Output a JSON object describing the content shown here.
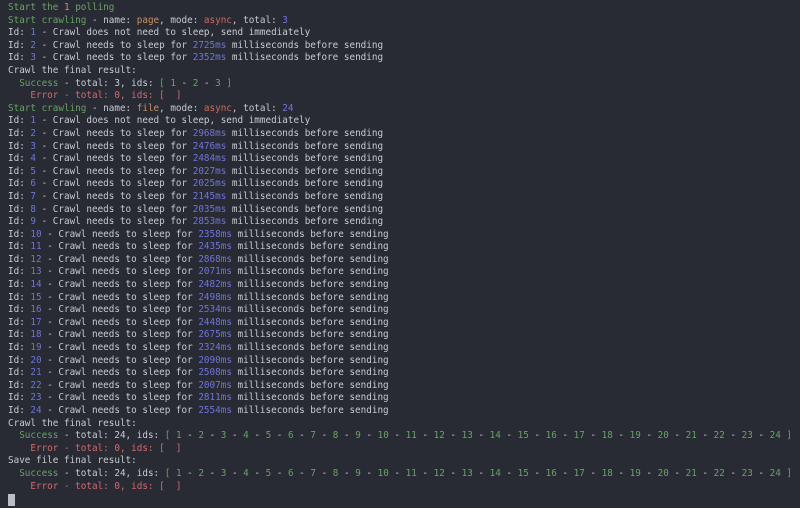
{
  "palette": {
    "bg": "#282b34",
    "default": "#c7cad1",
    "green": "#69a164",
    "orange": "#cb9162",
    "salmon": "#c96b5c",
    "red": "#d4686c",
    "blue": "#6f74d8",
    "cursor": "#b8bdc6"
  },
  "terminal": {
    "lines": [
      [
        [
          "Start the ",
          "green"
        ],
        [
          "1",
          "orange"
        ],
        [
          " polling",
          "green"
        ]
      ],
      [
        [
          "Start crawling",
          "green"
        ],
        [
          " - name: ",
          "default"
        ],
        [
          "page",
          "orange"
        ],
        [
          ", mode: ",
          "default"
        ],
        [
          "async",
          "salmon"
        ],
        [
          ", total: ",
          "default"
        ],
        [
          "3",
          "blue"
        ]
      ],
      [
        [
          "Id: ",
          "default"
        ],
        [
          "1",
          "blue"
        ],
        [
          " - Crawl does not need to sleep, send immediately",
          "default"
        ]
      ],
      [
        [
          "Id: ",
          "default"
        ],
        [
          "2",
          "blue"
        ],
        [
          " - Crawl needs to sleep for ",
          "default"
        ],
        [
          "2725ms",
          "blue"
        ],
        [
          " milliseconds before sending",
          "default"
        ]
      ],
      [
        [
          "Id: ",
          "default"
        ],
        [
          "3",
          "blue"
        ],
        [
          " - Crawl needs to sleep for ",
          "default"
        ],
        [
          "2352ms",
          "blue"
        ],
        [
          " milliseconds before sending",
          "default"
        ]
      ],
      [
        [
          "Crawl the final result:",
          "default"
        ]
      ],
      [
        [
          "  ",
          "default"
        ],
        [
          "Success",
          "green"
        ],
        [
          " - total: 3, ids: ",
          "default"
        ],
        [
          "[ 1",
          "green"
        ],
        [
          " - ",
          "default"
        ],
        [
          "2",
          "green"
        ],
        [
          " - ",
          "default"
        ],
        [
          "3",
          "green"
        ],
        [
          " ]",
          "green"
        ]
      ],
      [
        [
          "    ",
          "default"
        ],
        [
          "Error - total: 0, ids: [  ]",
          "red"
        ]
      ],
      [
        [
          "Start crawling",
          "green"
        ],
        [
          " - name: ",
          "default"
        ],
        [
          "file",
          "orange"
        ],
        [
          ", mode: ",
          "default"
        ],
        [
          "async",
          "salmon"
        ],
        [
          ", total: ",
          "default"
        ],
        [
          "24",
          "blue"
        ]
      ],
      [
        [
          "Id: ",
          "default"
        ],
        [
          "1",
          "blue"
        ],
        [
          " - Crawl does not need to sleep, send immediately",
          "default"
        ]
      ],
      [
        [
          "Id: ",
          "default"
        ],
        [
          "2",
          "blue"
        ],
        [
          " - Crawl needs to sleep for ",
          "default"
        ],
        [
          "2968ms",
          "blue"
        ],
        [
          " milliseconds before sending",
          "default"
        ]
      ],
      [
        [
          "Id: ",
          "default"
        ],
        [
          "3",
          "blue"
        ],
        [
          " - Crawl needs to sleep for ",
          "default"
        ],
        [
          "2476ms",
          "blue"
        ],
        [
          " milliseconds before sending",
          "default"
        ]
      ],
      [
        [
          "Id: ",
          "default"
        ],
        [
          "4",
          "blue"
        ],
        [
          " - Crawl needs to sleep for ",
          "default"
        ],
        [
          "2484ms",
          "blue"
        ],
        [
          " milliseconds before sending",
          "default"
        ]
      ],
      [
        [
          "Id: ",
          "default"
        ],
        [
          "5",
          "blue"
        ],
        [
          " - Crawl needs to sleep for ",
          "default"
        ],
        [
          "2027ms",
          "blue"
        ],
        [
          " milliseconds before sending",
          "default"
        ]
      ],
      [
        [
          "Id: ",
          "default"
        ],
        [
          "6",
          "blue"
        ],
        [
          " - Crawl needs to sleep for ",
          "default"
        ],
        [
          "2025ms",
          "blue"
        ],
        [
          " milliseconds before sending",
          "default"
        ]
      ],
      [
        [
          "Id: ",
          "default"
        ],
        [
          "7",
          "blue"
        ],
        [
          " - Crawl needs to sleep for ",
          "default"
        ],
        [
          "2145ms",
          "blue"
        ],
        [
          " milliseconds before sending",
          "default"
        ]
      ],
      [
        [
          "Id: ",
          "default"
        ],
        [
          "8",
          "blue"
        ],
        [
          " - Crawl needs to sleep for ",
          "default"
        ],
        [
          "2035ms",
          "blue"
        ],
        [
          " milliseconds before sending",
          "default"
        ]
      ],
      [
        [
          "Id: ",
          "default"
        ],
        [
          "9",
          "blue"
        ],
        [
          " - Crawl needs to sleep for ",
          "default"
        ],
        [
          "2853ms",
          "blue"
        ],
        [
          " milliseconds before sending",
          "default"
        ]
      ],
      [
        [
          "Id: ",
          "default"
        ],
        [
          "10",
          "blue"
        ],
        [
          " - Crawl needs to sleep for ",
          "default"
        ],
        [
          "2358ms",
          "blue"
        ],
        [
          " milliseconds before sending",
          "default"
        ]
      ],
      [
        [
          "Id: ",
          "default"
        ],
        [
          "11",
          "blue"
        ],
        [
          " - Crawl needs to sleep for ",
          "default"
        ],
        [
          "2435ms",
          "blue"
        ],
        [
          " milliseconds before sending",
          "default"
        ]
      ],
      [
        [
          "Id: ",
          "default"
        ],
        [
          "12",
          "blue"
        ],
        [
          " - Crawl needs to sleep for ",
          "default"
        ],
        [
          "2868ms",
          "blue"
        ],
        [
          " milliseconds before sending",
          "default"
        ]
      ],
      [
        [
          "Id: ",
          "default"
        ],
        [
          "13",
          "blue"
        ],
        [
          " - Crawl needs to sleep for ",
          "default"
        ],
        [
          "2071ms",
          "blue"
        ],
        [
          " milliseconds before sending",
          "default"
        ]
      ],
      [
        [
          "Id: ",
          "default"
        ],
        [
          "14",
          "blue"
        ],
        [
          " - Crawl needs to sleep for ",
          "default"
        ],
        [
          "2482ms",
          "blue"
        ],
        [
          " milliseconds before sending",
          "default"
        ]
      ],
      [
        [
          "Id: ",
          "default"
        ],
        [
          "15",
          "blue"
        ],
        [
          " - Crawl needs to sleep for ",
          "default"
        ],
        [
          "2498ms",
          "blue"
        ],
        [
          " milliseconds before sending",
          "default"
        ]
      ],
      [
        [
          "Id: ",
          "default"
        ],
        [
          "16",
          "blue"
        ],
        [
          " - Crawl needs to sleep for ",
          "default"
        ],
        [
          "2534ms",
          "blue"
        ],
        [
          " milliseconds before sending",
          "default"
        ]
      ],
      [
        [
          "Id: ",
          "default"
        ],
        [
          "17",
          "blue"
        ],
        [
          " - Crawl needs to sleep for ",
          "default"
        ],
        [
          "2448ms",
          "blue"
        ],
        [
          " milliseconds before sending",
          "default"
        ]
      ],
      [
        [
          "Id: ",
          "default"
        ],
        [
          "18",
          "blue"
        ],
        [
          " - Crawl needs to sleep for ",
          "default"
        ],
        [
          "2675ms",
          "blue"
        ],
        [
          " milliseconds before sending",
          "default"
        ]
      ],
      [
        [
          "Id: ",
          "default"
        ],
        [
          "19",
          "blue"
        ],
        [
          " - Crawl needs to sleep for ",
          "default"
        ],
        [
          "2324ms",
          "blue"
        ],
        [
          " milliseconds before sending",
          "default"
        ]
      ],
      [
        [
          "Id: ",
          "default"
        ],
        [
          "20",
          "blue"
        ],
        [
          " - Crawl needs to sleep for ",
          "default"
        ],
        [
          "2090ms",
          "blue"
        ],
        [
          " milliseconds before sending",
          "default"
        ]
      ],
      [
        [
          "Id: ",
          "default"
        ],
        [
          "21",
          "blue"
        ],
        [
          " - Crawl needs to sleep for ",
          "default"
        ],
        [
          "2508ms",
          "blue"
        ],
        [
          " milliseconds before sending",
          "default"
        ]
      ],
      [
        [
          "Id: ",
          "default"
        ],
        [
          "22",
          "blue"
        ],
        [
          " - Crawl needs to sleep for ",
          "default"
        ],
        [
          "2007ms",
          "blue"
        ],
        [
          " milliseconds before sending",
          "default"
        ]
      ],
      [
        [
          "Id: ",
          "default"
        ],
        [
          "23",
          "blue"
        ],
        [
          " - Crawl needs to sleep for ",
          "default"
        ],
        [
          "2811ms",
          "blue"
        ],
        [
          " milliseconds before sending",
          "default"
        ]
      ],
      [
        [
          "Id: ",
          "default"
        ],
        [
          "24",
          "blue"
        ],
        [
          " - Crawl needs to sleep for ",
          "default"
        ],
        [
          "2554ms",
          "blue"
        ],
        [
          " milliseconds before sending",
          "default"
        ]
      ],
      [
        [
          "Crawl the final result:",
          "default"
        ]
      ],
      [
        [
          "  ",
          "default"
        ],
        [
          "Success",
          "green"
        ],
        [
          " - total: 24, ids: ",
          "default"
        ],
        [
          "[ 1",
          "green"
        ],
        [
          " - ",
          "default"
        ],
        [
          "2",
          "green"
        ],
        [
          " - ",
          "default"
        ],
        [
          "3",
          "green"
        ],
        [
          " - ",
          "default"
        ],
        [
          "4",
          "green"
        ],
        [
          " - ",
          "default"
        ],
        [
          "5",
          "green"
        ],
        [
          " - ",
          "default"
        ],
        [
          "6",
          "green"
        ],
        [
          " - ",
          "default"
        ],
        [
          "7",
          "green"
        ],
        [
          " - ",
          "default"
        ],
        [
          "8",
          "green"
        ],
        [
          " - ",
          "default"
        ],
        [
          "9",
          "green"
        ],
        [
          " - ",
          "default"
        ],
        [
          "10",
          "green"
        ],
        [
          " - ",
          "default"
        ],
        [
          "11",
          "green"
        ],
        [
          " - ",
          "default"
        ],
        [
          "12",
          "green"
        ],
        [
          " - ",
          "default"
        ],
        [
          "13",
          "green"
        ],
        [
          " - ",
          "default"
        ],
        [
          "14",
          "green"
        ],
        [
          " - ",
          "default"
        ],
        [
          "15",
          "green"
        ],
        [
          " - ",
          "default"
        ],
        [
          "16",
          "green"
        ],
        [
          " - ",
          "default"
        ],
        [
          "17",
          "green"
        ],
        [
          " - ",
          "default"
        ],
        [
          "18",
          "green"
        ],
        [
          " - ",
          "default"
        ],
        [
          "19",
          "green"
        ],
        [
          " - ",
          "default"
        ],
        [
          "20",
          "green"
        ],
        [
          " - ",
          "default"
        ],
        [
          "21",
          "green"
        ],
        [
          " - ",
          "default"
        ],
        [
          "22",
          "green"
        ],
        [
          " - ",
          "default"
        ],
        [
          "23",
          "green"
        ],
        [
          " - ",
          "default"
        ],
        [
          "24",
          "green"
        ],
        [
          " ]",
          "green"
        ]
      ],
      [
        [
          "    ",
          "default"
        ],
        [
          "Error - total: 0, ids: [  ]",
          "red"
        ]
      ],
      [
        [
          "Save file final result:",
          "default"
        ]
      ],
      [
        [
          "  ",
          "default"
        ],
        [
          "Success",
          "green"
        ],
        [
          " - total: 24, ids: ",
          "default"
        ],
        [
          "[ 1",
          "green"
        ],
        [
          " - ",
          "default"
        ],
        [
          "2",
          "green"
        ],
        [
          " - ",
          "default"
        ],
        [
          "3",
          "green"
        ],
        [
          " - ",
          "default"
        ],
        [
          "4",
          "green"
        ],
        [
          " - ",
          "default"
        ],
        [
          "5",
          "green"
        ],
        [
          " - ",
          "default"
        ],
        [
          "6",
          "green"
        ],
        [
          " - ",
          "default"
        ],
        [
          "7",
          "green"
        ],
        [
          " - ",
          "default"
        ],
        [
          "8",
          "green"
        ],
        [
          " - ",
          "default"
        ],
        [
          "9",
          "green"
        ],
        [
          " - ",
          "default"
        ],
        [
          "10",
          "green"
        ],
        [
          " - ",
          "default"
        ],
        [
          "11",
          "green"
        ],
        [
          " - ",
          "default"
        ],
        [
          "12",
          "green"
        ],
        [
          " - ",
          "default"
        ],
        [
          "13",
          "green"
        ],
        [
          " - ",
          "default"
        ],
        [
          "14",
          "green"
        ],
        [
          " - ",
          "default"
        ],
        [
          "15",
          "green"
        ],
        [
          " - ",
          "default"
        ],
        [
          "16",
          "green"
        ],
        [
          " - ",
          "default"
        ],
        [
          "17",
          "green"
        ],
        [
          " - ",
          "default"
        ],
        [
          "18",
          "green"
        ],
        [
          " - ",
          "default"
        ],
        [
          "19",
          "green"
        ],
        [
          " - ",
          "default"
        ],
        [
          "20",
          "green"
        ],
        [
          " - ",
          "default"
        ],
        [
          "21",
          "green"
        ],
        [
          " - ",
          "default"
        ],
        [
          "22",
          "green"
        ],
        [
          " - ",
          "default"
        ],
        [
          "23",
          "green"
        ],
        [
          " - ",
          "default"
        ],
        [
          "24",
          "green"
        ],
        [
          " ]",
          "green"
        ]
      ],
      [
        [
          "    ",
          "default"
        ],
        [
          "Error - total: 0, ids: [  ]",
          "red"
        ]
      ]
    ],
    "cursor_visible": true
  }
}
